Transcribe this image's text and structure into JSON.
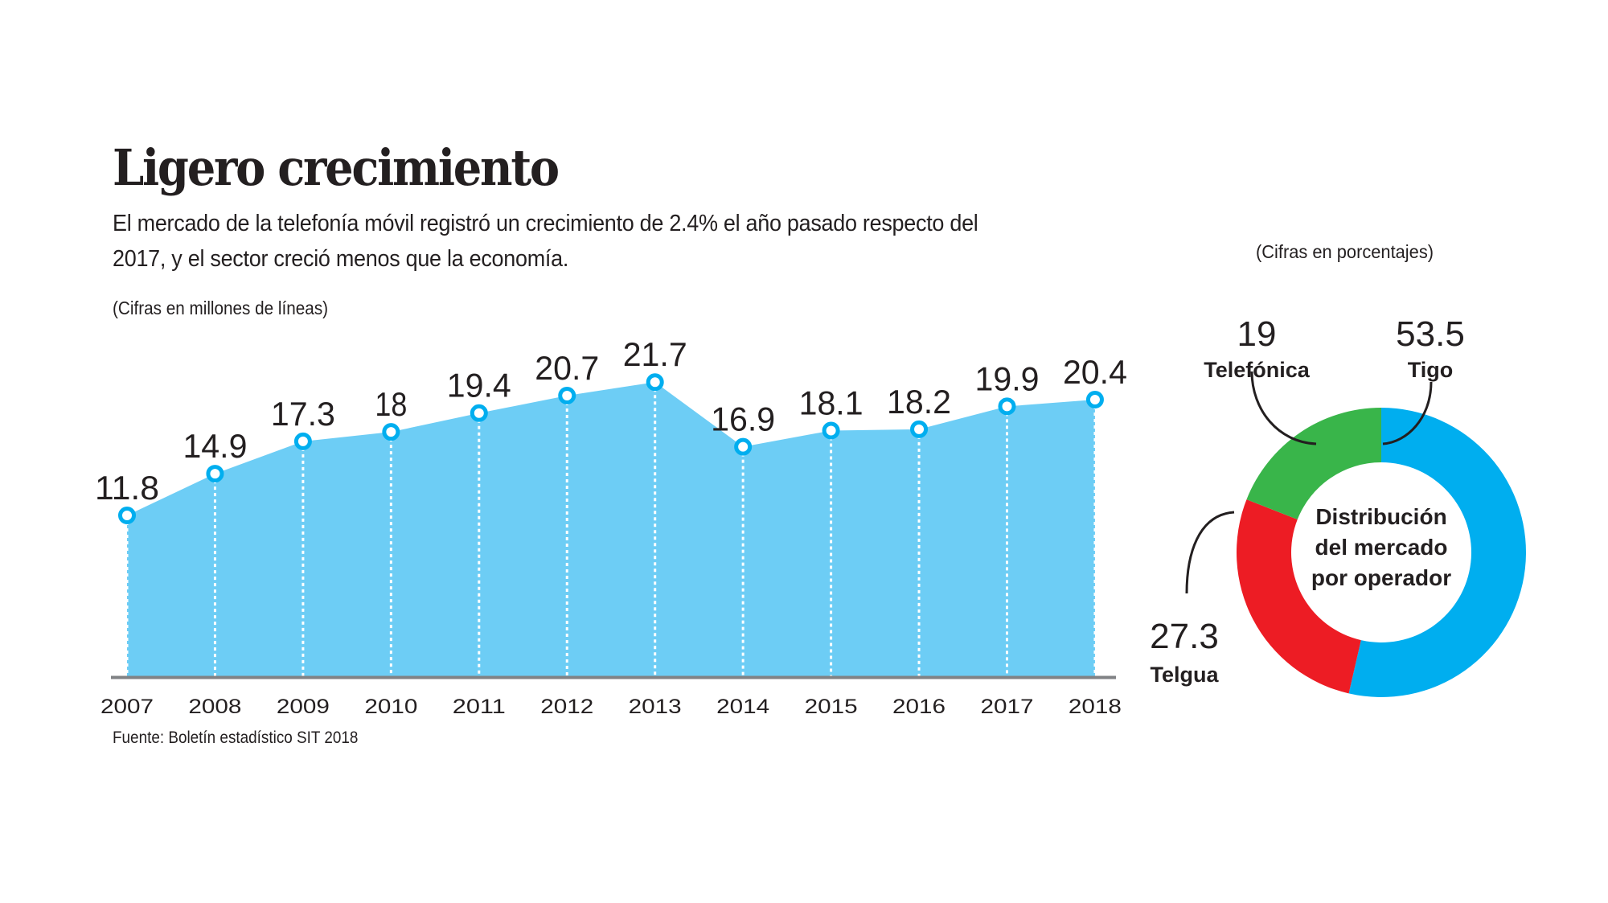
{
  "header": {
    "title": "Ligero crecimiento",
    "subtitle": "El mercado de la telefonía móvil registró un crecimiento de 2.4% el año pasado respecto del 2017, y el sector creció menos que la economía."
  },
  "source": "Fuente: Boletín estadístico SIT 2018",
  "colors": {
    "area_fill": "#6dcdf5",
    "marker": "#00aeef",
    "axis": "#808285",
    "tigo": "#00aeef",
    "telgua": "#ed1c24",
    "telefonica": "#39b54a",
    "text": "#231f20"
  },
  "chart_data": [
    {
      "type": "area",
      "title": "Ligero crecimiento",
      "units_note": "(Cifras en millones de líneas)",
      "xlabel": "",
      "ylabel": "Millones de líneas",
      "categories": [
        "2007",
        "2008",
        "2009",
        "2010",
        "2011",
        "2012",
        "2013",
        "2014",
        "2015",
        "2016",
        "2017",
        "2018"
      ],
      "values": [
        11.8,
        14.9,
        17.3,
        18,
        19.4,
        20.7,
        21.7,
        16.9,
        18.1,
        18.2,
        19.9,
        20.4
      ],
      "value_labels": [
        "11.8",
        "14.9",
        "17.3",
        "18",
        "19.4",
        "20.7",
        "21.7",
        "16.9",
        "18.1",
        "18.2",
        "19.9",
        "20.4"
      ],
      "ylim": [
        0,
        22
      ],
      "grid": false,
      "markers": "hollow circles with dotted drop lines"
    },
    {
      "type": "pie",
      "variant": "donut",
      "title": "Distribución del mercado por operador",
      "center_lines": [
        "Distribución",
        "del mercado",
        "por operador"
      ],
      "units_note": "(Cifras en porcentajes)",
      "slices": [
        {
          "name": "Tigo",
          "value": 53.5,
          "label": "53.5",
          "color": "#00aeef"
        },
        {
          "name": "Telgua",
          "value": 27.3,
          "label": "27.3",
          "color": "#ed1c24"
        },
        {
          "name": "Telefónica",
          "value": 19,
          "label": "19",
          "color": "#39b54a"
        }
      ]
    }
  ]
}
